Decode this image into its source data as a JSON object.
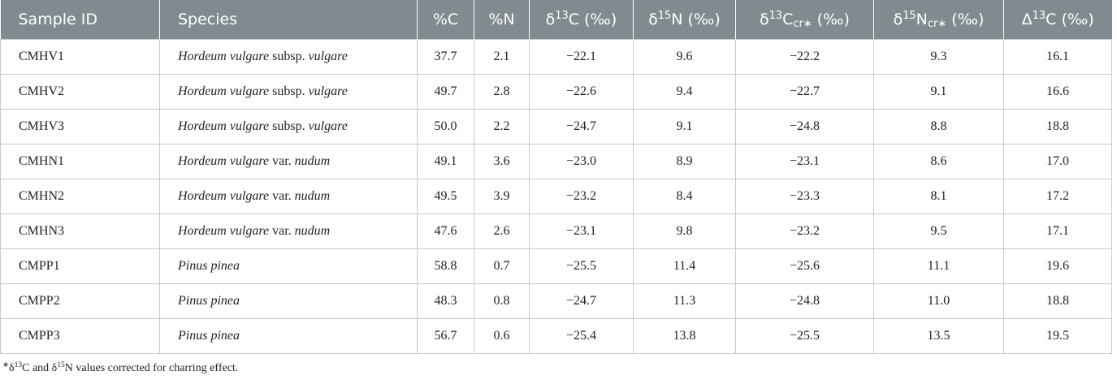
{
  "table": {
    "header": [
      [
        {
          "text": "Sample ID"
        }
      ],
      [
        {
          "text": "Species"
        }
      ],
      [
        {
          "text": "%C"
        }
      ],
      [
        {
          "text": "%N"
        }
      ],
      [
        {
          "text": "δ"
        },
        {
          "sup": "13"
        },
        {
          "text": "C (‰)"
        }
      ],
      [
        {
          "text": "δ"
        },
        {
          "sup": "15"
        },
        {
          "text": "N (‰)"
        }
      ],
      [
        {
          "text": "δ"
        },
        {
          "sup": "13"
        },
        {
          "text": "C"
        },
        {
          "sub": "cr∗"
        },
        {
          "text": " (‰)"
        }
      ],
      [
        {
          "text": "δ"
        },
        {
          "sup": "15"
        },
        {
          "text": "N"
        },
        {
          "sub": "cr∗"
        },
        {
          "text": " (‰)"
        }
      ],
      [
        {
          "text": "Δ"
        },
        {
          "sup": "13"
        },
        {
          "text": "C (‰)"
        }
      ]
    ],
    "rows": [
      [
        "CMHV1",
        [
          {
            "i": "Hordeum vulgare"
          },
          {
            "text": " subsp. "
          },
          {
            "i": "vulgare"
          }
        ],
        "37.7",
        "2.1",
        "−22.1",
        "9.6",
        "−22.2",
        "9.3",
        "16.1"
      ],
      [
        "CMHV2",
        [
          {
            "i": "Hordeum vulgare"
          },
          {
            "text": " subsp. "
          },
          {
            "i": "vulgare"
          }
        ],
        "49.7",
        "2.8",
        "−22.6",
        "9.4",
        "−22.7",
        "9.1",
        "16.6"
      ],
      [
        "CMHV3",
        [
          {
            "i": "Hordeum vulgare"
          },
          {
            "text": " subsp. "
          },
          {
            "i": "vulgare"
          }
        ],
        "50.0",
        "2.2",
        "−24.7",
        "9.1",
        "−24.8",
        "8.8",
        "18.8"
      ],
      [
        "CMHN1",
        [
          {
            "i": "Hordeum vulgare"
          },
          {
            "text": " var. "
          },
          {
            "i": "nudum"
          }
        ],
        "49.1",
        "3.6",
        "−23.0",
        "8.9",
        "−23.1",
        "8.6",
        "17.0"
      ],
      [
        "CMHN2",
        [
          {
            "i": "Hordeum vulgare"
          },
          {
            "text": " var. "
          },
          {
            "i": "nudum"
          }
        ],
        "49.5",
        "3.9",
        "−23.2",
        "8.4",
        "−23.3",
        "8.1",
        "17.2"
      ],
      [
        "CMHN3",
        [
          {
            "i": "Hordeum vulgare"
          },
          {
            "text": " var. "
          },
          {
            "i": "nudum"
          }
        ],
        "47.6",
        "2.6",
        "−23.1",
        "9.8",
        "−23.2",
        "9.5",
        "17.1"
      ],
      [
        "CMPP1",
        [
          {
            "i": "Pinus pinea"
          }
        ],
        "58.8",
        "0.7",
        "−25.5",
        "11.4",
        "−25.6",
        "11.1",
        "19.6"
      ],
      [
        "CMPP2",
        [
          {
            "i": "Pinus pinea"
          }
        ],
        "48.3",
        "0.8",
        "−24.7",
        "11.3",
        "−24.8",
        "11.0",
        "18.8"
      ],
      [
        "CMPP3",
        [
          {
            "i": "Pinus pinea"
          }
        ],
        "56.7",
        "0.6",
        "−25.4",
        "13.8",
        "−25.5",
        "13.5",
        "19.5"
      ]
    ],
    "footnote": [
      {
        "sup": "∗"
      },
      {
        "text": "δ"
      },
      {
        "sup": "13"
      },
      {
        "text": "C and δ"
      },
      {
        "sup": "15"
      },
      {
        "text": "N values corrected for charring effect."
      }
    ]
  }
}
